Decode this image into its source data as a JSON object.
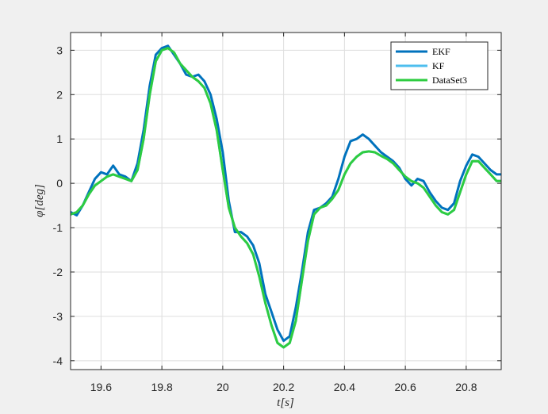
{
  "chart_data": {
    "type": "line",
    "title": "",
    "xlabel": "t[s]",
    "ylabel": "φ[deg]",
    "xlim": [
      19.5,
      20.915
    ],
    "ylim": [
      -4.2,
      3.4
    ],
    "xticks": [
      19.6,
      19.8,
      20,
      20.2,
      20.4,
      20.6,
      20.8
    ],
    "xtick_labels": [
      "19.6",
      "19.8",
      "20",
      "20.2",
      "20.4",
      "20.6",
      "20.8"
    ],
    "yticks": [
      -4,
      -3,
      -2,
      -1,
      0,
      1,
      2,
      3
    ],
    "ytick_labels": [
      "-4",
      "-3",
      "-2",
      "-1",
      "0",
      "1",
      "2",
      "3"
    ],
    "grid": true,
    "legend_position": "top-right",
    "series": [
      {
        "name": "EKF",
        "color": "#0072BD",
        "x": [
          19.5,
          19.52,
          19.54,
          19.56,
          19.58,
          19.6,
          19.62,
          19.64,
          19.66,
          19.68,
          19.7,
          19.72,
          19.74,
          19.76,
          19.78,
          19.8,
          19.82,
          19.84,
          19.86,
          19.88,
          19.9,
          19.92,
          19.94,
          19.96,
          19.98,
          20.0,
          20.02,
          20.04,
          20.06,
          20.08,
          20.1,
          20.12,
          20.14,
          20.16,
          20.18,
          20.2,
          20.22,
          20.24,
          20.26,
          20.28,
          20.3,
          20.32,
          20.34,
          20.36,
          20.38,
          20.4,
          20.42,
          20.44,
          20.46,
          20.48,
          20.5,
          20.52,
          20.54,
          20.56,
          20.58,
          20.6,
          20.62,
          20.64,
          20.66,
          20.68,
          20.7,
          20.72,
          20.74,
          20.76,
          20.78,
          20.8,
          20.82,
          20.84,
          20.86,
          20.88,
          20.9,
          20.915
        ],
        "y": [
          -0.65,
          -0.72,
          -0.5,
          -0.2,
          0.1,
          0.25,
          0.2,
          0.4,
          0.2,
          0.15,
          0.05,
          0.45,
          1.2,
          2.2,
          2.9,
          3.05,
          3.1,
          2.9,
          2.7,
          2.45,
          2.4,
          2.45,
          2.3,
          2.0,
          1.45,
          0.7,
          -0.4,
          -1.1,
          -1.1,
          -1.2,
          -1.4,
          -1.8,
          -2.5,
          -2.9,
          -3.3,
          -3.55,
          -3.45,
          -2.8,
          -2.0,
          -1.1,
          -0.6,
          -0.55,
          -0.45,
          -0.3,
          0.1,
          0.6,
          0.95,
          1.0,
          1.1,
          1.0,
          0.85,
          0.7,
          0.6,
          0.5,
          0.35,
          0.1,
          -0.05,
          0.1,
          0.05,
          -0.2,
          -0.4,
          -0.55,
          -0.6,
          -0.45,
          0.05,
          0.4,
          0.65,
          0.6,
          0.45,
          0.3,
          0.2,
          0.2
        ]
      },
      {
        "name": "KF",
        "color": "#4DBEEE",
        "x": [
          19.5,
          19.52,
          19.54,
          19.56,
          19.58,
          19.6,
          19.62,
          19.64,
          19.66,
          19.68,
          19.7,
          19.72,
          19.74,
          19.76,
          19.78,
          19.8,
          19.82,
          19.84,
          19.86,
          19.88,
          19.9,
          19.92,
          19.94,
          19.96,
          19.98,
          20.0,
          20.02,
          20.04,
          20.06,
          20.08,
          20.1,
          20.12,
          20.14,
          20.16,
          20.18,
          20.2,
          20.22,
          20.24,
          20.26,
          20.28,
          20.3,
          20.32,
          20.34,
          20.36,
          20.38,
          20.4,
          20.42,
          20.44,
          20.46,
          20.48,
          20.5,
          20.52,
          20.54,
          20.56,
          20.58,
          20.6,
          20.62,
          20.64,
          20.66,
          20.68,
          20.7,
          20.72,
          20.74,
          20.76,
          20.78,
          20.8,
          20.82,
          20.84,
          20.86,
          20.88,
          20.9,
          20.915
        ],
        "y": [
          -0.7,
          -0.65,
          -0.5,
          -0.25,
          -0.05,
          0.05,
          0.15,
          0.2,
          0.15,
          0.1,
          0.05,
          0.3,
          1.0,
          2.0,
          2.75,
          3.0,
          3.05,
          2.95,
          2.7,
          2.55,
          2.4,
          2.3,
          2.15,
          1.8,
          1.2,
          0.3,
          -0.55,
          -1.0,
          -1.2,
          -1.35,
          -1.6,
          -2.1,
          -2.7,
          -3.2,
          -3.6,
          -3.7,
          -3.6,
          -3.1,
          -2.2,
          -1.3,
          -0.7,
          -0.55,
          -0.5,
          -0.35,
          -0.15,
          0.2,
          0.45,
          0.6,
          0.7,
          0.72,
          0.7,
          0.62,
          0.55,
          0.45,
          0.3,
          0.15,
          0.05,
          0.0,
          -0.1,
          -0.3,
          -0.5,
          -0.65,
          -0.7,
          -0.6,
          -0.2,
          0.2,
          0.5,
          0.5,
          0.35,
          0.2,
          0.05,
          0.05
        ]
      },
      {
        "name": "DataSet3",
        "color": "#2ECC40",
        "x": [
          19.5,
          19.52,
          19.54,
          19.56,
          19.58,
          19.6,
          19.62,
          19.64,
          19.66,
          19.68,
          19.7,
          19.72,
          19.74,
          19.76,
          19.78,
          19.8,
          19.82,
          19.84,
          19.86,
          19.88,
          19.9,
          19.92,
          19.94,
          19.96,
          19.98,
          20.0,
          20.02,
          20.04,
          20.06,
          20.08,
          20.1,
          20.12,
          20.14,
          20.16,
          20.18,
          20.2,
          20.22,
          20.24,
          20.26,
          20.28,
          20.3,
          20.32,
          20.34,
          20.36,
          20.38,
          20.4,
          20.42,
          20.44,
          20.46,
          20.48,
          20.5,
          20.52,
          20.54,
          20.56,
          20.58,
          20.6,
          20.62,
          20.64,
          20.66,
          20.68,
          20.7,
          20.72,
          20.74,
          20.76,
          20.78,
          20.8,
          20.82,
          20.84,
          20.86,
          20.88,
          20.9,
          20.915
        ],
        "y": [
          -0.7,
          -0.65,
          -0.5,
          -0.25,
          -0.05,
          0.05,
          0.15,
          0.2,
          0.15,
          0.1,
          0.05,
          0.3,
          1.0,
          2.0,
          2.75,
          3.0,
          3.05,
          2.95,
          2.7,
          2.55,
          2.4,
          2.3,
          2.15,
          1.8,
          1.2,
          0.3,
          -0.55,
          -1.0,
          -1.2,
          -1.35,
          -1.6,
          -2.1,
          -2.7,
          -3.2,
          -3.6,
          -3.7,
          -3.6,
          -3.1,
          -2.2,
          -1.3,
          -0.7,
          -0.55,
          -0.5,
          -0.35,
          -0.15,
          0.2,
          0.45,
          0.6,
          0.7,
          0.72,
          0.7,
          0.62,
          0.55,
          0.45,
          0.3,
          0.15,
          0.05,
          0.0,
          -0.1,
          -0.3,
          -0.5,
          -0.65,
          -0.7,
          -0.6,
          -0.2,
          0.2,
          0.5,
          0.5,
          0.35,
          0.2,
          0.05,
          0.05
        ]
      }
    ]
  }
}
